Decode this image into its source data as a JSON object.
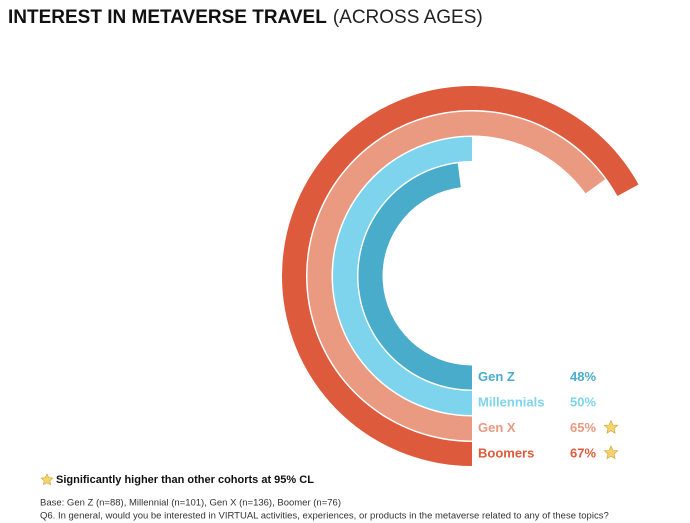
{
  "chart_data": {
    "type": "radial-bar",
    "title": "INTEREST IN METAVERSE TRAVEL",
    "subtitle": "(ACROSS AGES)",
    "categories": [
      "Gen Z",
      "Millennials",
      "Gen X",
      "Boomers"
    ],
    "values": [
      48,
      50,
      65,
      67
    ],
    "value_labels": [
      "48%",
      "50%",
      "65%",
      "67%"
    ],
    "colors": [
      "#4aaccb",
      "#7dd4ec",
      "#e99a80",
      "#de5a3c"
    ],
    "significant": [
      false,
      false,
      true,
      true
    ],
    "max_value": 100,
    "significance_note": "Significantly higher than other cohorts at 95% CL",
    "base_note": "Base: Gen Z (n=88), Millennial (n=101), Gen X (n=136), Boomer (n=76)",
    "question_note": "Q6. In general, would you be interested in VIRTUAL activities, experiences, or products in the metaverse related to any of these topics?"
  }
}
